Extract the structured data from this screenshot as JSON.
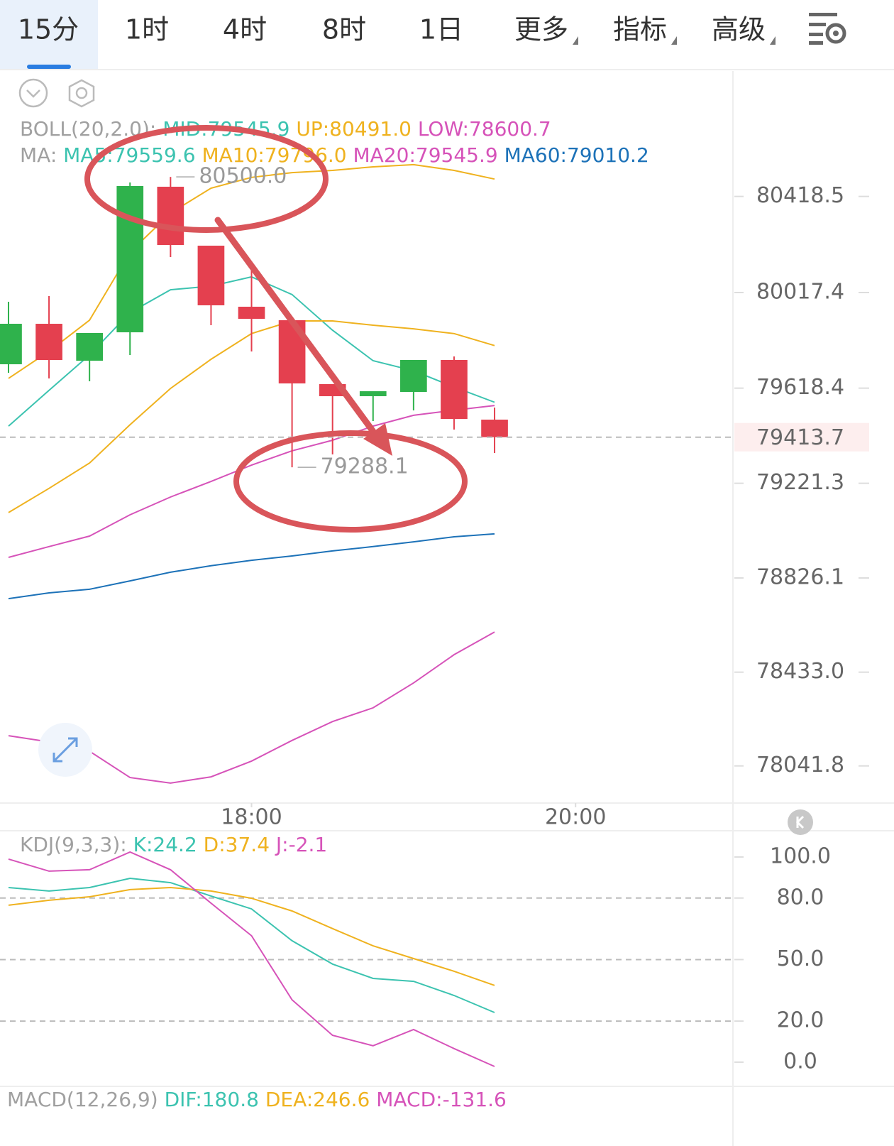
{
  "tabs": [
    "15分",
    "1时",
    "4时",
    "8时",
    "1日",
    "更多",
    "指标",
    "高级"
  ],
  "chart_data": [
    {
      "type": "candlestick",
      "legends": [
        [
          {
            "text": "BOLL(20,2.0):",
            "color": "#a0a0a0"
          },
          {
            "text": "MID:79545.9",
            "color": "#3cc3b0"
          },
          {
            "text": "UP:80491.0",
            "color": "#efb21f"
          },
          {
            "text": "LOW:78600.7",
            "color": "#d653b9"
          }
        ],
        [
          {
            "text": "MA:",
            "color": "#a0a0a0"
          },
          {
            "text": "MA5:79559.6",
            "color": "#3cc3b0"
          },
          {
            "text": "MA10:79796.0",
            "color": "#efb21f"
          },
          {
            "text": "MA20:79545.9",
            "color": "#d653b9"
          },
          {
            "text": "MA60:79010.2",
            "color": "#1d72b8"
          }
        ]
      ],
      "up_color": "#2fb24c",
      "down_color": "#e4404f",
      "open": [
        79718.1,
        79887.0,
        79732.9,
        79851.5,
        80459.0,
        80213.0,
        79958.2,
        79901.8,
        79635.2,
        79584.8,
        79602.6,
        79735.9,
        79487.0
      ],
      "high": [
        79978.9,
        80002.6,
        79848.5,
        80476.7,
        80500.0,
        80213.0,
        80112.2,
        79901.8,
        79635.2,
        79605.5,
        79735.9,
        79750.7,
        79537.3
      ],
      "low": [
        79682.6,
        79658.9,
        79647.0,
        79756.6,
        80165.6,
        79881.1,
        79771.5,
        79288.1,
        79341.8,
        79481.0,
        79525.5,
        79445.5,
        79347.7
      ],
      "close": [
        79887.0,
        79735.9,
        79848.5,
        80461.9,
        80216.0,
        79964.1,
        79907.8,
        79638.1,
        79584.8,
        79605.5,
        79735.9,
        79489.9,
        79413.7
      ],
      "series": [
        {
          "color": "#efb21f",
          "values": [
            79659,
            79772,
            79902,
            80186,
            80349,
            80453,
            80498,
            80518,
            80527,
            80542,
            80551,
            80527,
            80491.0
          ]
        },
        {
          "color": "#3cc3b0",
          "values": [
            79460,
            79609,
            79757,
            79934,
            80029,
            80044,
            80083,
            80009,
            79860,
            79733,
            79691,
            79623,
            79559.6
          ]
        },
        {
          "color": "#efb21f",
          "values": [
            79099,
            79200,
            79306,
            79466,
            79617,
            79739,
            79846,
            79899,
            79899,
            79881,
            79866,
            79846,
            79796.0
          ]
        },
        {
          "color": "#d653b9",
          "values": [
            78912,
            78957,
            79001,
            79090,
            79164,
            79229,
            79297,
            79357,
            79401,
            79460,
            79505,
            79526,
            79545.9
          ]
        },
        {
          "color": "#1d72b8",
          "values": [
            78740,
            78764,
            78779,
            78814,
            78850,
            78877,
            78900,
            78918,
            78939,
            78957,
            78977,
            78998,
            79010.2
          ]
        },
        {
          "color": "#d653b9",
          "values": [
            78168,
            78142,
            78103,
            77993,
            77970,
            77996,
            78062,
            78148,
            78227,
            78284,
            78388,
            78506,
            78600.7
          ]
        }
      ],
      "high_label": {
        "index": 4,
        "value": 80500.0,
        "label": "80500.0"
      },
      "low_label": {
        "index": 7,
        "value": 79288.1,
        "label": "79288.1"
      },
      "last_price": 79413.7,
      "xlim": [
        -0.21,
        17.92
      ],
      "xticks": [
        {
          "value": 6,
          "label": "18:00"
        },
        {
          "value": 14,
          "label": "20:00"
        }
      ],
      "ylim": [
        77889.7,
        80942.0
      ],
      "yticks": [
        80418.5,
        80017.4,
        79618.4,
        79221.3,
        78826.1,
        {
          "value": 78433.0,
          "label": "78433.0"
        },
        78041.8
      ]
    },
    {
      "type": "line",
      "legends": [
        [
          {
            "text": "KDJ(9,3,3):",
            "color": "#a0a0a0"
          },
          {
            "text": "K:24.2",
            "color": "#3cc3b0"
          },
          {
            "text": "D:37.4",
            "color": "#efb21f"
          },
          {
            "text": "J:-2.1",
            "color": "#d653b9"
          }
        ]
      ],
      "series": [
        {
          "color": "#3cc3b0",
          "values": [
            85.1,
            83.4,
            85.1,
            89.6,
            87.5,
            81.0,
            74.7,
            59.2,
            47.8,
            40.8,
            39.4,
            32.5,
            24.2
          ]
        },
        {
          "color": "#efb21f",
          "values": [
            76.5,
            78.9,
            80.6,
            84.1,
            85.1,
            83.4,
            79.9,
            73.7,
            65.1,
            56.7,
            50.5,
            44.3,
            37.4
          ]
        },
        {
          "color": "#d653b9",
          "values": [
            99.0,
            93.1,
            93.8,
            102.4,
            93.8,
            77.5,
            61.6,
            30.4,
            13.1,
            8.0,
            15.9,
            6.6,
            -2.1
          ]
        }
      ],
      "reference_lines": [
        80,
        50,
        20
      ],
      "ylim": [
        -11.8,
        112.8
      ],
      "yticks": [
        {
          "value": 100,
          "label": "100.0"
        },
        {
          "value": 80,
          "label": "80.0"
        },
        {
          "value": 50,
          "label": "50.0"
        },
        {
          "value": 20,
          "label": "20.0"
        },
        {
          "value": 0,
          "label": "0.0"
        }
      ]
    }
  ],
  "macd_legend": [
    {
      "text": "MACD(12,26,9)",
      "color": "#a0a0a0"
    },
    {
      "text": "DIF:180.8",
      "color": "#3cc3b0"
    },
    {
      "text": "DEA:246.6",
      "color": "#efb21f"
    },
    {
      "text": "MACD:-131.6",
      "color": "#d653b9"
    }
  ]
}
